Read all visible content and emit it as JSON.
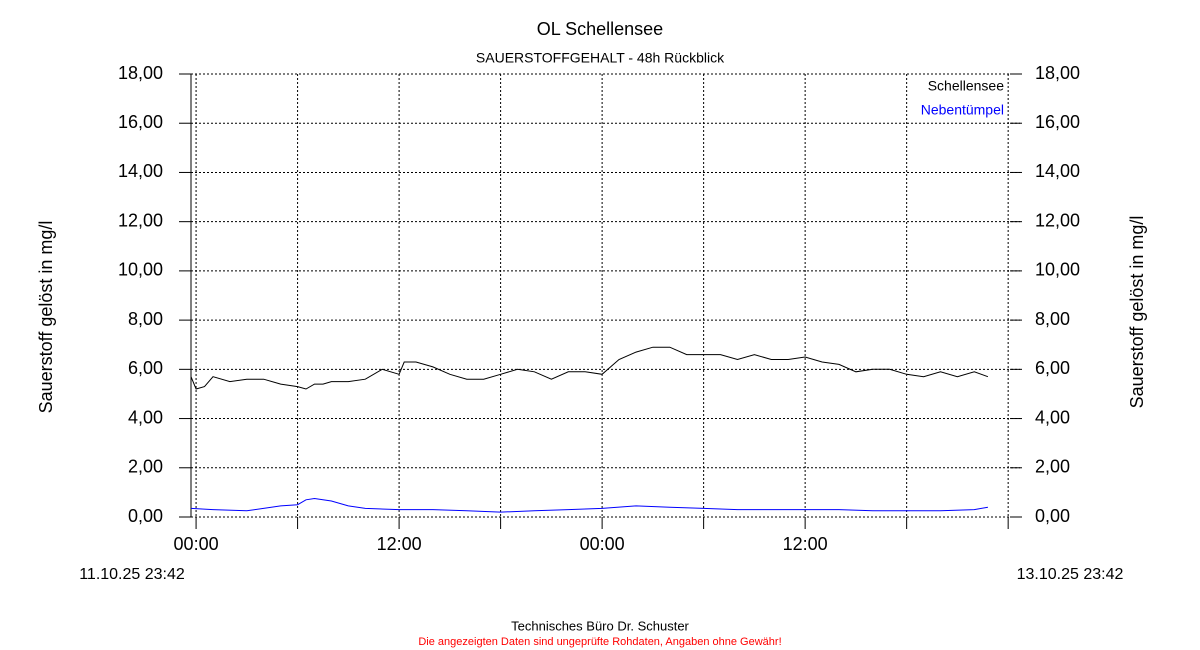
{
  "chart_data": {
    "type": "line",
    "title": "OL Schellensee",
    "subtitle": "SAUERSTOFFGEHALT - 48h Rückblick",
    "y_label": "Sauerstoff gelöst in mg/l",
    "y2_label": "Sauerstoff gelöst in mg/l",
    "start_label": "11.10.25 23:42",
    "end_label": "13.10.25 23:42",
    "footer": "Technisches Büro Dr. Schuster",
    "disclaimer": "Die angezeigten Daten sind ungeprüfte Rohdaten, Angaben ohne Gewähr!",
    "grid": true,
    "legend": "top-right",
    "xlim": [
      -0.3,
      48.7
    ],
    "xticks": [
      {
        "value": 0,
        "label": "00:00"
      },
      {
        "value": 12,
        "label": "12:00"
      },
      {
        "value": 24,
        "label": "00:00"
      },
      {
        "value": 36,
        "label": "12:00"
      }
    ],
    "xminor": [
      6,
      18,
      30,
      42,
      48
    ],
    "ylim": [
      0,
      18
    ],
    "yticks": [
      {
        "value": 0,
        "label": "0,00"
      },
      {
        "value": 2,
        "label": "2,00"
      },
      {
        "value": 4,
        "label": "4,00"
      },
      {
        "value": 6,
        "label": "6,00"
      },
      {
        "value": 8,
        "label": "8,00"
      },
      {
        "value": 10,
        "label": "10,00"
      },
      {
        "value": 12,
        "label": "12,00"
      },
      {
        "value": 14,
        "label": "14,00"
      },
      {
        "value": 16,
        "label": "16,00"
      },
      {
        "value": 18,
        "label": "18,00"
      }
    ],
    "y2lim": [
      0,
      18
    ],
    "y2ticks": [
      {
        "value": 0,
        "label": "0,00"
      },
      {
        "value": 2,
        "label": "2,00"
      },
      {
        "value": 4,
        "label": "4,00"
      },
      {
        "value": 6,
        "label": "6,00"
      },
      {
        "value": 8,
        "label": "8,00"
      },
      {
        "value": 10,
        "label": "10,00"
      },
      {
        "value": 12,
        "label": "12,00"
      },
      {
        "value": 14,
        "label": "14,00"
      },
      {
        "value": 16,
        "label": "16,00"
      },
      {
        "value": 18,
        "label": "18,00"
      }
    ],
    "series": [
      {
        "name": "Schellensee",
        "color": "#000000",
        "x": [
          -0.3,
          0,
          0.5,
          1,
          2,
          3,
          4,
          5,
          6,
          6.5,
          7,
          7.5,
          8,
          9,
          10,
          11,
          12,
          12.3,
          13,
          14,
          15,
          16,
          17,
          18,
          19,
          20,
          21,
          22,
          23,
          24,
          24.5,
          25,
          26,
          27,
          28,
          29,
          30,
          31,
          32,
          33,
          34,
          35,
          36,
          37,
          38,
          39,
          40,
          41,
          42,
          43,
          44,
          45,
          46,
          46.8
        ],
        "values": [
          5.7,
          5.2,
          5.3,
          5.7,
          5.5,
          5.6,
          5.6,
          5.4,
          5.3,
          5.2,
          5.4,
          5.4,
          5.5,
          5.5,
          5.6,
          6.0,
          5.8,
          6.3,
          6.3,
          6.1,
          5.8,
          5.6,
          5.6,
          5.8,
          6.0,
          5.9,
          5.6,
          5.9,
          5.9,
          5.8,
          6.1,
          6.4,
          6.7,
          6.9,
          6.9,
          6.6,
          6.6,
          6.6,
          6.4,
          6.6,
          6.4,
          6.4,
          6.5,
          6.3,
          6.2,
          5.9,
          6.0,
          6.0,
          5.8,
          5.7,
          5.9,
          5.7,
          5.9,
          5.7
        ]
      },
      {
        "name": "Nebentümpel",
        "color": "#0000ff",
        "x": [
          -0.3,
          1,
          3,
          5,
          6,
          6.5,
          7,
          8,
          9,
          10,
          12,
          14,
          16,
          18,
          20,
          22,
          24,
          26,
          28,
          30,
          32,
          34,
          36,
          38,
          40,
          42,
          44,
          46,
          46.8
        ],
        "values": [
          0.35,
          0.3,
          0.25,
          0.45,
          0.5,
          0.7,
          0.75,
          0.65,
          0.45,
          0.35,
          0.3,
          0.3,
          0.25,
          0.2,
          0.25,
          0.3,
          0.35,
          0.45,
          0.4,
          0.35,
          0.3,
          0.3,
          0.3,
          0.3,
          0.25,
          0.25,
          0.25,
          0.3,
          0.4
        ]
      }
    ]
  }
}
